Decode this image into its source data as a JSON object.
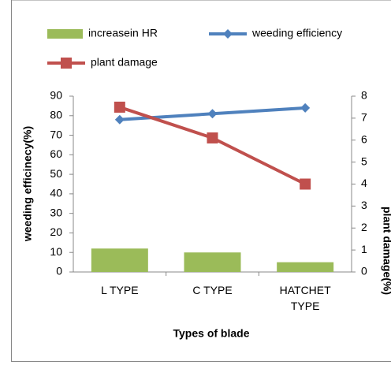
{
  "chart_data": {
    "type": "bar-line",
    "x_label": "Types of blade",
    "y_label": "weeding efficinecy(%)",
    "y2_label": "plant damage(%)",
    "categories": [
      "L TYPE",
      "C TYPE",
      "HATCHET TYPE"
    ],
    "ylim": [
      0,
      90
    ],
    "yticks": [
      0,
      10,
      20,
      30,
      40,
      50,
      60,
      70,
      80,
      90
    ],
    "y2lim": [
      0,
      8
    ],
    "y2ticks": [
      0,
      1,
      2,
      3,
      4,
      5,
      6,
      7,
      8
    ],
    "series": [
      {
        "name": "increasein HR",
        "type": "bar",
        "color": "#9bbb59",
        "values": [
          12,
          10,
          5
        ]
      },
      {
        "name": "weeding efficiency",
        "type": "line",
        "marker": "diamond",
        "color": "#4f81bd",
        "values": [
          78,
          81,
          84
        ]
      },
      {
        "name": "plant damage",
        "type": "line",
        "marker": "square",
        "color": "#c0504d",
        "axis": "y2",
        "values": [
          7.5,
          6.1,
          4.0
        ]
      }
    ]
  }
}
